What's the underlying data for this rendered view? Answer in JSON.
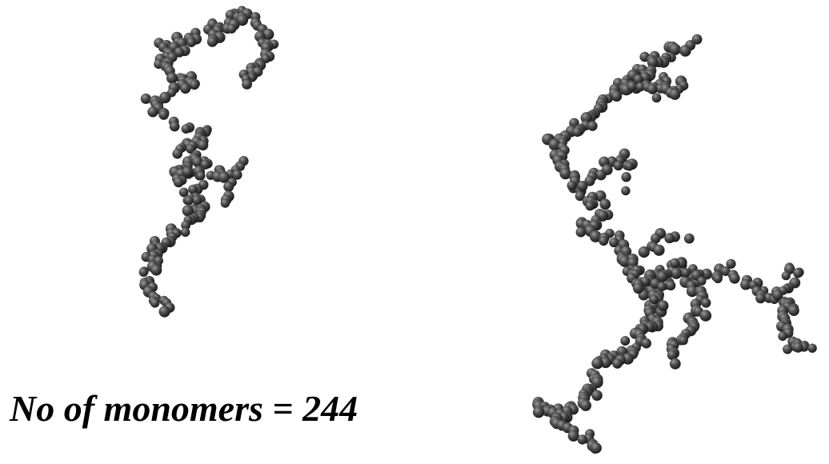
{
  "caption": "No of monomers = 244",
  "colors": {
    "background": "#ffffff",
    "monomer_highlight": "#9a9a9a",
    "monomer_mid": "#4d4d4d",
    "monomer_shadow": "#141414",
    "caption_text": "#000000"
  }
}
